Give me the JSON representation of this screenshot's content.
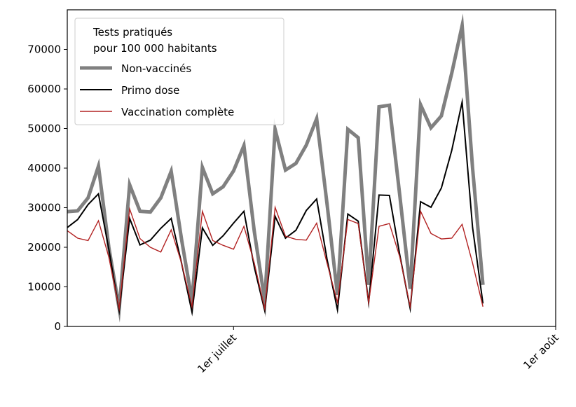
{
  "chart_data": {
    "type": "line",
    "title": "",
    "xlabel": "",
    "ylabel": "",
    "ylim": [
      0,
      80000
    ],
    "yticks": [
      0,
      10000,
      20000,
      30000,
      40000,
      50000,
      60000,
      70000
    ],
    "xticks": [
      {
        "date": "2021-07-01",
        "label": "1er juillet"
      },
      {
        "date": "2021-08-01",
        "label": "1er août"
      }
    ],
    "xlim": [
      "2021-06-15",
      "2021-08-01"
    ],
    "grid": false,
    "legend": {
      "title_lines": [
        "Tests pratiqués",
        "pour 100 000 habitants"
      ],
      "placement": "top-left"
    },
    "dates": [
      "2021-06-15",
      "2021-06-16",
      "2021-06-17",
      "2021-06-18",
      "2021-06-19",
      "2021-06-20",
      "2021-06-21",
      "2021-06-22",
      "2021-06-23",
      "2021-06-24",
      "2021-06-25",
      "2021-06-26",
      "2021-06-27",
      "2021-06-28",
      "2021-06-29",
      "2021-06-30",
      "2021-07-01",
      "2021-07-02",
      "2021-07-03",
      "2021-07-04",
      "2021-07-05",
      "2021-07-06",
      "2021-07-07",
      "2021-07-08",
      "2021-07-09",
      "2021-07-10",
      "2021-07-11",
      "2021-07-12",
      "2021-07-13",
      "2021-07-14",
      "2021-07-15",
      "2021-07-16",
      "2021-07-17",
      "2021-07-18",
      "2021-07-19",
      "2021-07-20",
      "2021-07-21",
      "2021-07-22",
      "2021-07-23",
      "2021-07-24",
      "2021-07-25"
    ],
    "series": [
      {
        "name": "Non-vaccinés",
        "color": "#808080",
        "values": [
          29000,
          29200,
          32500,
          40500,
          20000,
          4500,
          35800,
          29100,
          28900,
          32500,
          39200,
          22000,
          6500,
          40200,
          33500,
          35300,
          39300,
          45700,
          24000,
          6500,
          49800,
          39500,
          41200,
          45800,
          52500,
          31000,
          8000,
          49800,
          47700,
          10500,
          55500,
          55900,
          33000,
          9500,
          56000,
          50200,
          53200,
          64000,
          76000,
          40000,
          10500
        ]
      },
      {
        "name": "Primo dose",
        "color": "#000000",
        "values": [
          25000,
          27000,
          30800,
          33500,
          19500,
          4000,
          27300,
          20600,
          21800,
          24800,
          27300,
          16000,
          3600,
          24900,
          20500,
          22900,
          26100,
          29100,
          15000,
          4000,
          27800,
          22300,
          24300,
          29300,
          32200,
          17000,
          4200,
          28400,
          26600,
          6000,
          33200,
          33100,
          18000,
          4500,
          31500,
          30100,
          35000,
          44500,
          56700,
          25000,
          5800
        ]
      },
      {
        "name": "Vaccination complète",
        "color": "#b22222",
        "values": [
          24200,
          22300,
          21700,
          26700,
          17500,
          4500,
          29700,
          22200,
          20000,
          18800,
          24400,
          16000,
          5000,
          29100,
          21700,
          20500,
          19500,
          25300,
          16000,
          4500,
          30100,
          22800,
          22000,
          21800,
          26100,
          16000,
          6000,
          27000,
          26000,
          6000,
          25300,
          26000,
          17500,
          5000,
          29100,
          23500,
          22100,
          22300,
          25800,
          16000,
          5000
        ]
      }
    ]
  }
}
